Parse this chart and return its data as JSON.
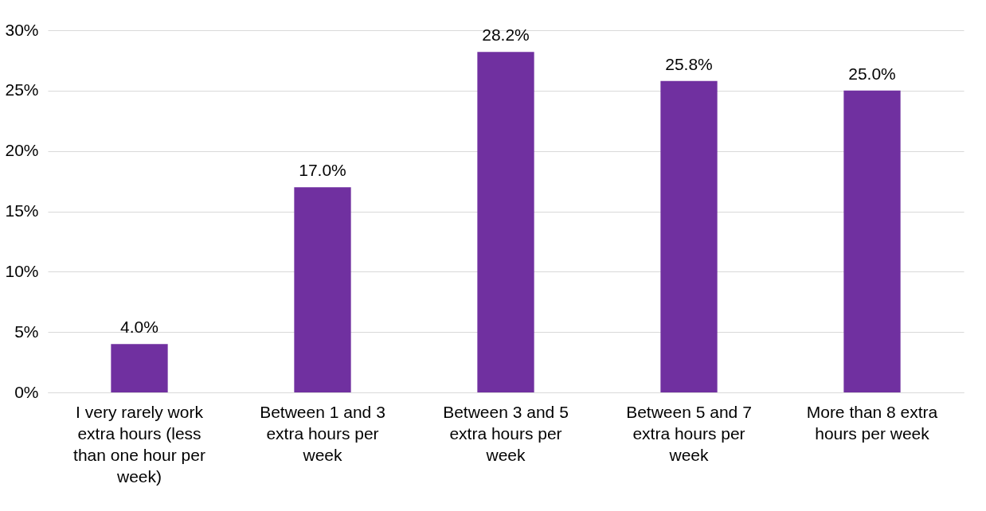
{
  "chart_data": {
    "type": "bar",
    "categories": [
      "I very rarely work extra hours (less than one hour per week)",
      "Between 1 and 3 extra hours per week",
      "Between 3 and 5 extra hours per week",
      "Between 5 and 7 extra hours per week",
      "More than 8 extra hours per week"
    ],
    "values": [
      4.0,
      17.0,
      28.2,
      25.8,
      25.0
    ],
    "value_labels": [
      "4.0%",
      "17.0%",
      "28.2%",
      "25.8%",
      "25.0%"
    ],
    "color": "#7030a0",
    "ylim": [
      0,
      30
    ],
    "yticks": [
      {
        "value": 0,
        "label": "0%"
      },
      {
        "value": 5,
        "label": "5%"
      },
      {
        "value": 10,
        "label": "10%"
      },
      {
        "value": 15,
        "label": "15%"
      },
      {
        "value": 20,
        "label": "20%"
      },
      {
        "value": 25,
        "label": "25%"
      },
      {
        "value": 30,
        "label": "30%"
      }
    ],
    "grid": "y"
  }
}
